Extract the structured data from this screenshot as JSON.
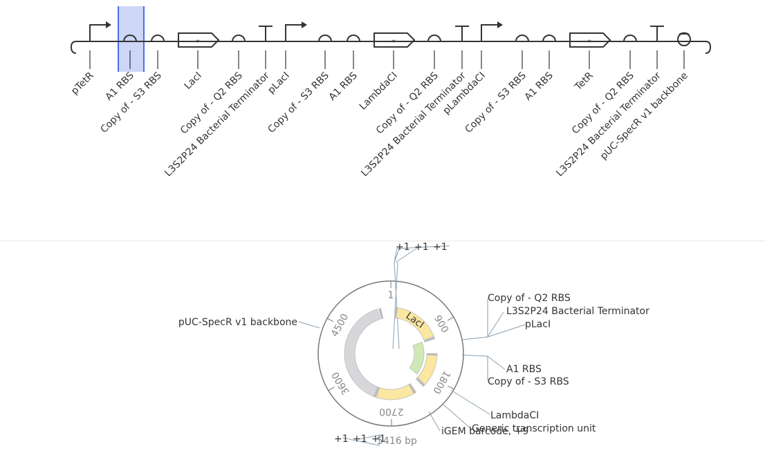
{
  "design": {
    "parts": [
      {
        "type": "promoter",
        "label": "pTetR"
      },
      {
        "type": "rbs",
        "label": "A1 RBS"
      },
      {
        "type": "rbs",
        "label": "Copy of - S3 RBS"
      },
      {
        "type": "cds",
        "label": "LacI"
      },
      {
        "type": "rbs",
        "label": "Copy of - Q2 RBS"
      },
      {
        "type": "terminator",
        "label": "L3S2P24 Bacterial Terminator"
      },
      {
        "type": "promoter",
        "label": "pLacI"
      },
      {
        "type": "rbs",
        "label": "Copy of - S3 RBS"
      },
      {
        "type": "rbs",
        "label": "A1 RBS"
      },
      {
        "type": "cds",
        "label": "LambdaCI"
      },
      {
        "type": "rbs",
        "label": "Copy of - Q2 RBS"
      },
      {
        "type": "terminator",
        "label": "L3S2P24 Bacterial Terminator"
      },
      {
        "type": "promoter",
        "label": "pLambdaCI"
      },
      {
        "type": "rbs",
        "label": "Copy of - S3 RBS"
      },
      {
        "type": "rbs",
        "label": "A1 RBS"
      },
      {
        "type": "cds",
        "label": "TetR"
      },
      {
        "type": "rbs",
        "label": "Copy of - Q2 RBS"
      },
      {
        "type": "terminator",
        "label": "L3S2P24 Bacterial Terminator"
      },
      {
        "type": "origin",
        "label": "pUC-SpecR v1 backbone"
      }
    ]
  },
  "plasmid": {
    "length": 5416,
    "length_label": "5416 bp",
    "ticks": [
      1,
      900,
      1800,
      2700,
      3600,
      4500
    ],
    "arc_labels": [
      "LacI"
    ],
    "annotations": [
      "Copy of - Q2 RBS",
      "L3S2P24 Bacterial Terminator",
      "pLacI",
      "A1 RBS",
      "Copy of - S3 RBS",
      "LambdaCI",
      "Generic transcription unit",
      "iGEM barcode, +9",
      "pUC-SpecR v1 backbone"
    ],
    "top_marks": [
      "+1",
      "+1",
      "+1"
    ],
    "bottom_marks": [
      "+1",
      "+1",
      "+1"
    ]
  }
}
